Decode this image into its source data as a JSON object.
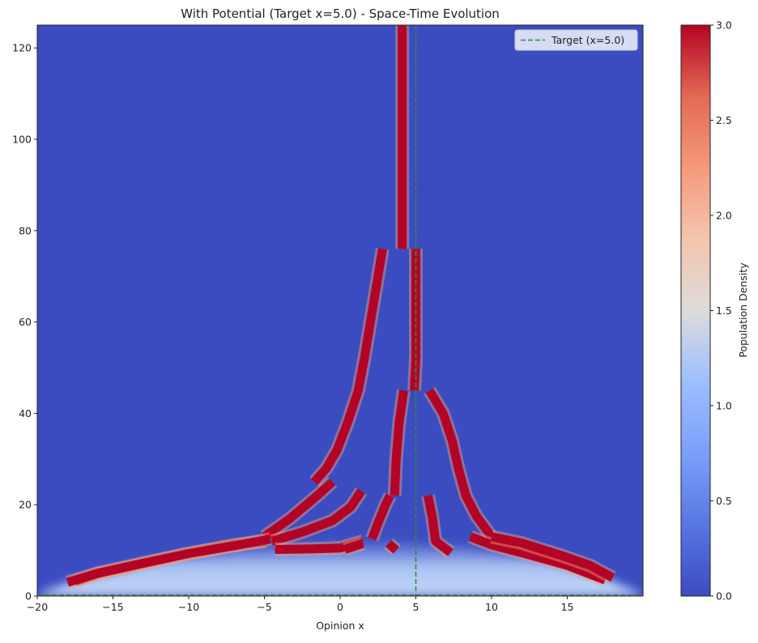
{
  "chart_data": {
    "type": "heatmap",
    "title": "With Potential (Target x=5.0) - Space-Time Evolution",
    "xlabel": "Opinion x",
    "ylabel": "",
    "xlim": [
      -20,
      20
    ],
    "ylim": [
      0,
      125
    ],
    "x_ticks": [
      -20,
      -15,
      -10,
      -5,
      0,
      5,
      10,
      15
    ],
    "x_tick_labels": [
      "−20",
      "−15",
      "−10",
      "−5",
      "0",
      "5",
      "10",
      "15"
    ],
    "y_ticks": [
      0,
      20,
      40,
      60,
      80,
      100,
      120
    ],
    "y_tick_labels": [
      "0",
      "20",
      "40",
      "60",
      "80",
      "100",
      "120"
    ],
    "grid": false,
    "colormap": "coolwarm",
    "colorbar": {
      "label": "Population Density",
      "range": [
        0,
        3.0
      ],
      "ticks": [
        0,
        0.5,
        1.0,
        1.5,
        2.0,
        2.5,
        3.0
      ],
      "tick_labels": [
        "0.0",
        "0.5",
        "1.0",
        "1.5",
        "2.0",
        "2.5",
        "3.0"
      ]
    },
    "target_lines": [
      {
        "orientation": "vertical",
        "value": 5.0,
        "color": "#2e8b3a",
        "style": "dashed"
      },
      {
        "orientation": "horizontal",
        "value": 0.0,
        "color": "#2e8b3a",
        "style": "dashed"
      }
    ],
    "legend": {
      "placement": "top-right",
      "entries": [
        {
          "label": "Target (x=5.0)",
          "color": "#2e8b3a",
          "style": "dashed"
        }
      ]
    },
    "clusters": [
      {
        "points": [
          [
            4.1,
            76
          ],
          [
            4.1,
            125
          ]
        ]
      },
      {
        "points": [
          [
            -1.7,
            25
          ],
          [
            -0.9,
            28
          ],
          [
            -0.2,
            32
          ],
          [
            0.5,
            38
          ],
          [
            1.2,
            45
          ],
          [
            1.6,
            52
          ],
          [
            2.0,
            60
          ],
          [
            2.4,
            68
          ],
          [
            2.8,
            76
          ]
        ]
      },
      {
        "points": [
          [
            4.9,
            45
          ],
          [
            5.0,
            52
          ],
          [
            5.0,
            60
          ],
          [
            5.0,
            68
          ],
          [
            5.0,
            76
          ]
        ]
      },
      {
        "points": [
          [
            3.6,
            22
          ],
          [
            3.7,
            30
          ],
          [
            3.9,
            38
          ],
          [
            4.2,
            45
          ]
        ]
      },
      {
        "points": [
          [
            5.9,
            45
          ],
          [
            6.8,
            40
          ],
          [
            7.4,
            34
          ],
          [
            7.8,
            28
          ],
          [
            8.3,
            22
          ],
          [
            9.0,
            17.5
          ],
          [
            10.0,
            13
          ]
        ]
      },
      {
        "points": [
          [
            -5.0,
            13
          ],
          [
            -3.3,
            17
          ],
          [
            -1.5,
            22
          ],
          [
            -0.5,
            25
          ]
        ]
      },
      {
        "points": [
          [
            -4.9,
            12
          ],
          [
            -7.0,
            11.2
          ],
          [
            -10.0,
            9.3
          ],
          [
            -13.0,
            7.1
          ],
          [
            -16.0,
            4.9
          ],
          [
            -17.5,
            3.2
          ]
        ]
      },
      {
        "points": [
          [
            -4.5,
            12
          ],
          [
            -2.5,
            14
          ],
          [
            -0.5,
            16.5
          ],
          [
            0.7,
            19.5
          ],
          [
            1.4,
            23
          ]
        ]
      },
      {
        "points": [
          [
            -4.6,
            12.5
          ],
          [
            -7.0,
            11.0
          ],
          [
            -10.0,
            9.3
          ],
          [
            -13.0,
            7.2
          ],
          [
            -16.0,
            5.0
          ],
          [
            -18.0,
            3.0
          ]
        ]
      },
      {
        "points": [
          [
            -4.3,
            10.2
          ],
          [
            -2.0,
            10.3
          ],
          [
            0.0,
            10.5
          ],
          [
            1.5,
            12
          ]
        ]
      },
      {
        "points": [
          [
            2.1,
            12.5
          ],
          [
            2.5,
            16
          ],
          [
            3.0,
            20
          ],
          [
            3.3,
            22
          ]
        ]
      },
      {
        "points": [
          [
            0.3,
            10.2
          ],
          [
            1.5,
            11.5
          ]
        ]
      },
      {
        "points": [
          [
            3.2,
            11.5
          ],
          [
            3.7,
            10.0
          ]
        ]
      },
      {
        "points": [
          [
            5.8,
            22
          ],
          [
            6.1,
            17
          ],
          [
            6.3,
            12
          ],
          [
            7.3,
            9.5
          ]
        ]
      },
      {
        "points": [
          [
            8.6,
            13
          ],
          [
            10.0,
            11.2
          ],
          [
            12.5,
            9.0
          ],
          [
            15.0,
            6.7
          ],
          [
            17.5,
            3.5
          ]
        ]
      },
      {
        "points": [
          [
            10.0,
            13
          ],
          [
            12.0,
            11.6
          ],
          [
            14.5,
            9.0
          ],
          [
            16.5,
            6.7
          ],
          [
            18.0,
            4.0
          ]
        ]
      }
    ]
  }
}
